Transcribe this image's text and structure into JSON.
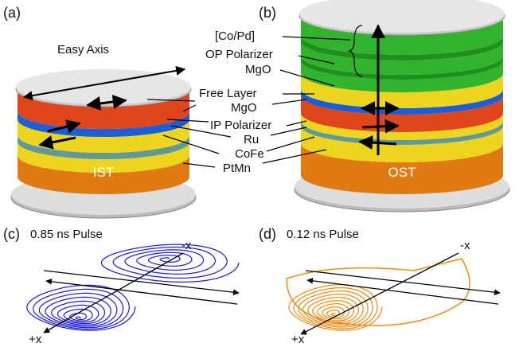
{
  "panels": [
    {
      "label": "(a)",
      "device": "IST"
    },
    {
      "label": "(b)",
      "device": "OST"
    },
    {
      "label": "(c)",
      "title": "0.85 ns Pulse",
      "axis_neg": "-x",
      "axis_pos": "+x"
    },
    {
      "label": "(d)",
      "title": "0.12 ns Pulse",
      "axis_neg": "-x",
      "axis_pos": "+x"
    }
  ],
  "annotations": {
    "easy_axis": "Easy Axis",
    "layers": [
      "[Co/Pd]",
      "OP Polarizer",
      "MgO",
      "Free Layer",
      "MgO",
      "IP Polarizer",
      "Ru",
      "CoFe",
      "PtMn"
    ]
  }
}
